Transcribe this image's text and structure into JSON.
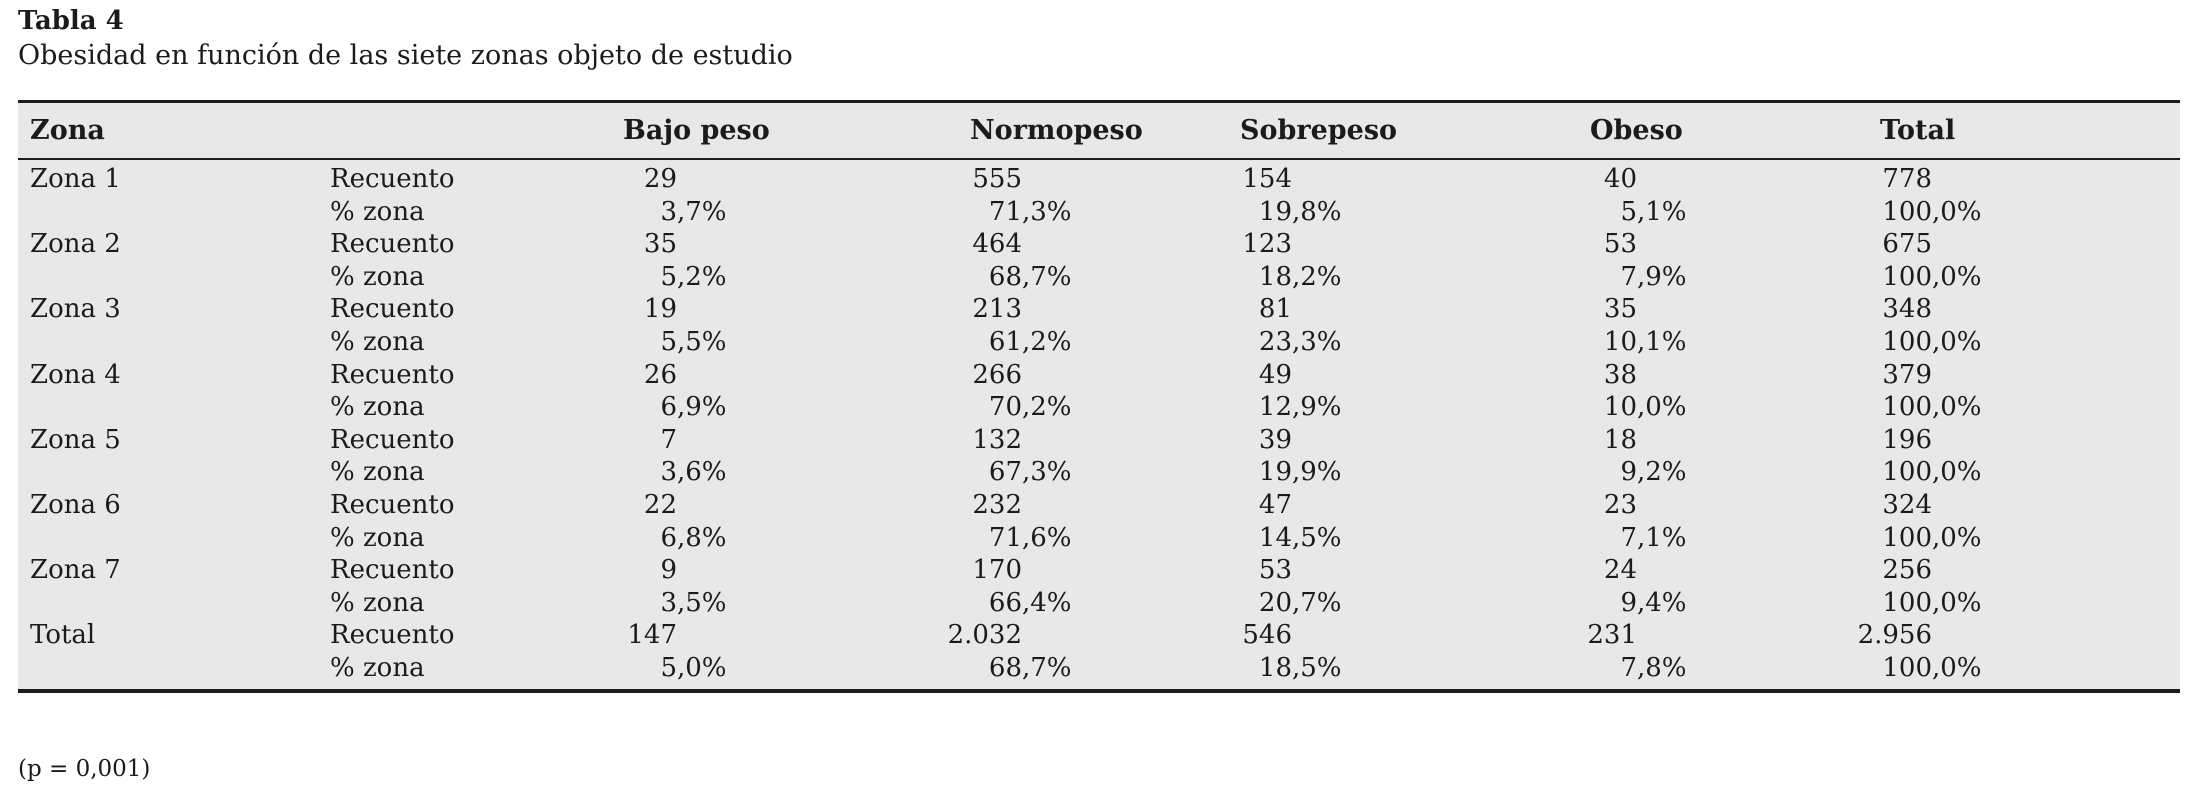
{
  "title": "Tabla 4",
  "subtitle": "Obesidad en función de las siete zonas objeto de estudio",
  "footnote": "(p = 0,001)",
  "colors": {
    "table_background": "#e8e8e8",
    "rule": "#1c1c1c",
    "text": "#1b1b1b",
    "page_background": "#ffffff"
  },
  "table": {
    "zona_header": "Zona",
    "columns": [
      "Bajo peso",
      "Normopeso",
      "Sobrepeso",
      "Obeso",
      "Total"
    ],
    "row_metric_labels": [
      "Recuento",
      "% zona"
    ],
    "rows": [
      {
        "zona": "Zona 1",
        "recuento": [
          "29",
          "555",
          "154",
          "40",
          "778"
        ],
        "pct": [
          "3,7%",
          "71,3%",
          "19,8%",
          "5,1%",
          "100,0%"
        ]
      },
      {
        "zona": "Zona 2",
        "recuento": [
          "35",
          "464",
          "123",
          "53",
          "675"
        ],
        "pct": [
          "5,2%",
          "68,7%",
          "18,2%",
          "7,9%",
          "100,0%"
        ]
      },
      {
        "zona": "Zona 3",
        "recuento": [
          "19",
          "213",
          "81",
          "35",
          "348"
        ],
        "pct": [
          "5,5%",
          "61,2%",
          "23,3%",
          "10,1%",
          "100,0%"
        ]
      },
      {
        "zona": "Zona 4",
        "recuento": [
          "26",
          "266",
          "49",
          "38",
          "379"
        ],
        "pct": [
          "6,9%",
          "70,2%",
          "12,9%",
          "10,0%",
          "100,0%"
        ]
      },
      {
        "zona": "Zona 5",
        "recuento": [
          "7",
          "132",
          "39",
          "18",
          "196"
        ],
        "pct": [
          "3,6%",
          "67,3%",
          "19,9%",
          "9,2%",
          "100,0%"
        ]
      },
      {
        "zona": "Zona 6",
        "recuento": [
          "22",
          "232",
          "47",
          "23",
          "324"
        ],
        "pct": [
          "6,8%",
          "71,6%",
          "14,5%",
          "7,1%",
          "100,0%"
        ]
      },
      {
        "zona": "Zona 7",
        "recuento": [
          "9",
          "170",
          "53",
          "24",
          "256"
        ],
        "pct": [
          "3,5%",
          "66,4%",
          "20,7%",
          "9,4%",
          "100,0%"
        ]
      },
      {
        "zona": "Total",
        "recuento": [
          "147",
          "2.032",
          "546",
          "231",
          "2.956"
        ],
        "pct": [
          "5,0%",
          "68,7%",
          "18,5%",
          "7,8%",
          "100,0%"
        ]
      }
    ]
  }
}
